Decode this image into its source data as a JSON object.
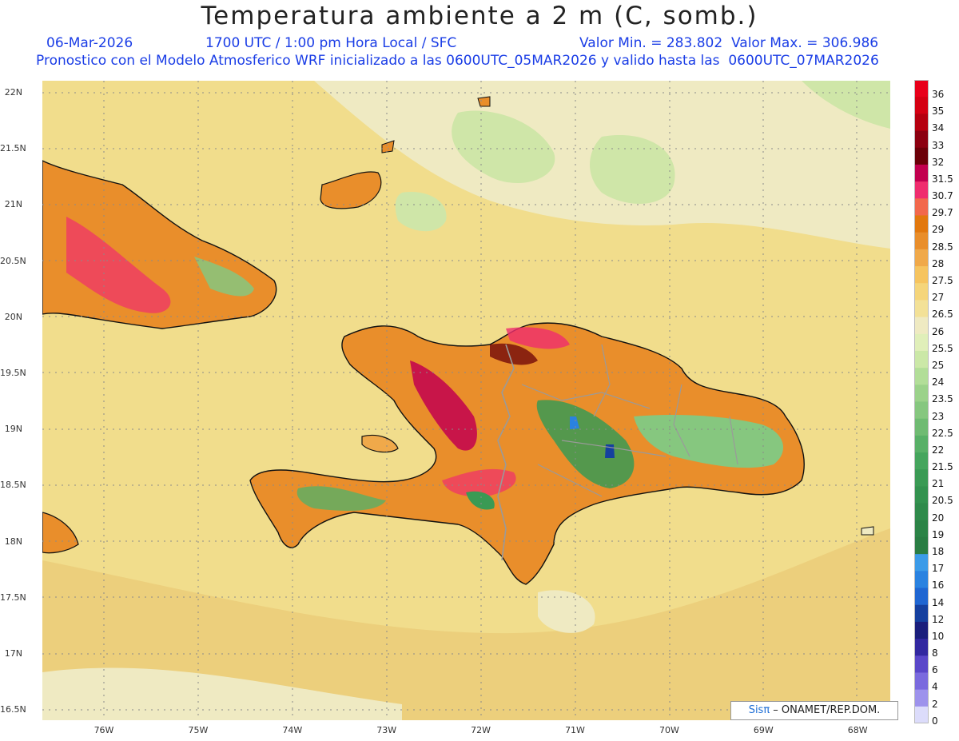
{
  "header": {
    "title": "Temperatura ambiente a 2 m (C, somb.)",
    "date": "06-Mar-2026",
    "time": "1700 UTC / 1:00 pm Hora Local / SFC",
    "min_max": "Valor Min. = 283.802  Valor Max. = 306.986",
    "model_info": "Pronostico con el Modelo Atmosferico WRF inicializado a las 0600UTC_05MAR2026 y valido hasta las  0600UTC_07MAR2026"
  },
  "map": {
    "lat_labels": [
      "22N",
      "21.5N",
      "21N",
      "20.5N",
      "20N",
      "19.5N",
      "19N",
      "18.5N",
      "18N",
      "17.5N",
      "17N",
      "16.5N"
    ],
    "lon_labels": [
      "76W",
      "75W",
      "74W",
      "73W",
      "72W",
      "71W",
      "70W",
      "69W",
      "68W"
    ],
    "credit_logo": "Sisπ",
    "credit_text": " – ONAMET/REP.DOM."
  },
  "colorbar": {
    "labels": [
      "36",
      "35",
      "34",
      "33",
      "32",
      "31.5",
      "30.7",
      "29.7",
      "29",
      "28.5",
      "28",
      "27.5",
      "27",
      "26.5",
      "26",
      "25.5",
      "25",
      "24",
      "23.5",
      "23",
      "22.5",
      "22",
      "21.5",
      "21",
      "20.5",
      "20",
      "19",
      "18",
      "17",
      "16",
      "14",
      "12",
      "10",
      "8",
      "6",
      "4",
      "2",
      "0"
    ],
    "colors": [
      "#e8001a",
      "#d40012",
      "#b5000f",
      "#8c0010",
      "#6b0008",
      "#c2004f",
      "#ef2d6e",
      "#f2684c",
      "#e2780e",
      "#e98e2b",
      "#f0a94a",
      "#f6c45f",
      "#f5d57a",
      "#f3e197",
      "#efeac2",
      "#e0efb9",
      "#cbe8a7",
      "#b2de98",
      "#9bd28a",
      "#86c77f",
      "#6fbb72",
      "#58b067",
      "#45a55d",
      "#3a9a54",
      "#33924f",
      "#2f8a4b",
      "#2b8346",
      "#297d43",
      "#3b9be8",
      "#2a82e0",
      "#1f66d2",
      "#15409f",
      "#1a1e7c",
      "#3228a0",
      "#5a47c9",
      "#7a6ade",
      "#9d92ec",
      "#dcdcfb"
    ]
  }
}
